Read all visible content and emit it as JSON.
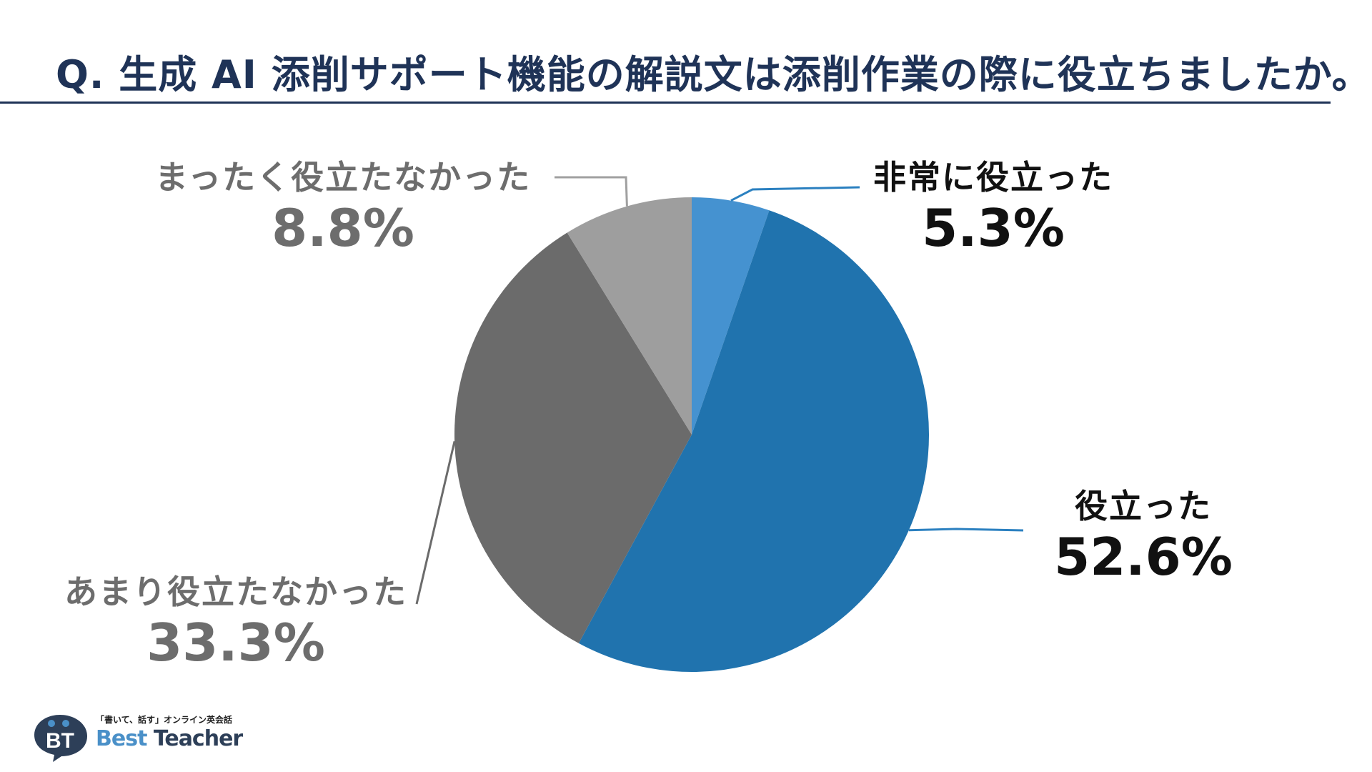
{
  "title": "Q. 生成 AI 添削サポート機能の解説文は添削作業の際に役立ちましたか。",
  "chart_data": {
    "type": "pie",
    "title": "Q. 生成 AI 添削サポート機能の解説文は添削作業の際に役立ちましたか。",
    "slices": [
      {
        "label": "非常に役立った",
        "value": 5.3,
        "display": "5.3%",
        "color": "#4592d0"
      },
      {
        "label": "役立った",
        "value": 52.6,
        "display": "52.6%",
        "color": "#2073ae"
      },
      {
        "label": "あまり役立たなかった",
        "value": 33.3,
        "display": "33.3%",
        "color": "#6b6b6b"
      },
      {
        "label": "まったく役立たなかった",
        "value": 8.8,
        "display": "8.8%",
        "color": "#9e9e9e"
      }
    ],
    "start_angle": "12 o'clock",
    "direction": "clockwise",
    "legend": "none"
  },
  "logo": {
    "mark": "BT",
    "tagline": "「書いて、話す」オンライン英会話",
    "name_part1": "Best",
    "name_part2": " Teacher"
  }
}
